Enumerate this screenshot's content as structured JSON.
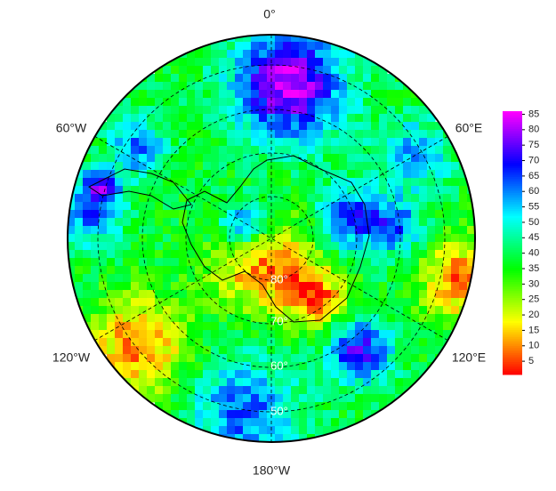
{
  "map": {
    "lon_labels": [
      "0°",
      "60°E",
      "120°E",
      "180°W",
      "120°W",
      "60°W"
    ],
    "lat_labels": [
      "80°",
      "70°",
      "60°",
      "50°"
    ],
    "colorbar": {
      "lim": [
        1,
        86
      ],
      "ticks": [
        5,
        10,
        15,
        20,
        25,
        30,
        35,
        40,
        45,
        50,
        55,
        60,
        65,
        70,
        75,
        80,
        85
      ]
    }
  }
}
